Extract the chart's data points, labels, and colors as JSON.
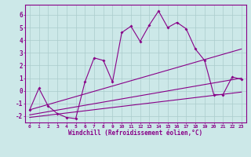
{
  "xlabel": "Windchill (Refroidissement éolien,°C)",
  "bg_color": "#cce8e8",
  "line_color": "#880088",
  "grid_color": "#aacccc",
  "xlim": [
    -0.5,
    23.5
  ],
  "ylim": [
    -2.5,
    6.8
  ],
  "xtick_vals": [
    0,
    1,
    2,
    3,
    4,
    5,
    6,
    7,
    8,
    9,
    10,
    11,
    12,
    13,
    14,
    15,
    16,
    17,
    18,
    19,
    20,
    21,
    22,
    23
  ],
  "xtick_labels": [
    "0",
    "1",
    "2",
    "3",
    "4",
    "5",
    "6",
    "7",
    "8",
    "9",
    "10",
    "11",
    "12",
    "13",
    "14",
    "15",
    "16",
    "17",
    "18",
    "19",
    "20",
    "21",
    "22",
    "23"
  ],
  "ytick_vals": [
    -2,
    -1,
    0,
    1,
    2,
    3,
    4,
    5,
    6
  ],
  "ytick_labels": [
    "-2",
    "-1",
    "0",
    "1",
    "2",
    "3",
    "4",
    "5",
    "6"
  ],
  "main_x": [
    0,
    1,
    2,
    3,
    4,
    5,
    6,
    7,
    8,
    9,
    10,
    11,
    12,
    13,
    14,
    15,
    16,
    17,
    18,
    19,
    20,
    21,
    22,
    23
  ],
  "main_y": [
    -1.5,
    0.2,
    -1.2,
    -1.8,
    -2.1,
    -2.2,
    0.7,
    2.6,
    2.4,
    0.7,
    4.6,
    5.1,
    3.9,
    5.2,
    6.3,
    5.0,
    5.4,
    4.9,
    3.3,
    2.4,
    -0.3,
    -0.3,
    1.1,
    0.9
  ],
  "line1_x": [
    0,
    23
  ],
  "line1_y": [
    -1.5,
    3.3
  ],
  "line2_x": [
    0,
    23
  ],
  "line2_y": [
    -1.9,
    1.0
  ],
  "line3_x": [
    0,
    23
  ],
  "line3_y": [
    -2.1,
    -0.1
  ]
}
